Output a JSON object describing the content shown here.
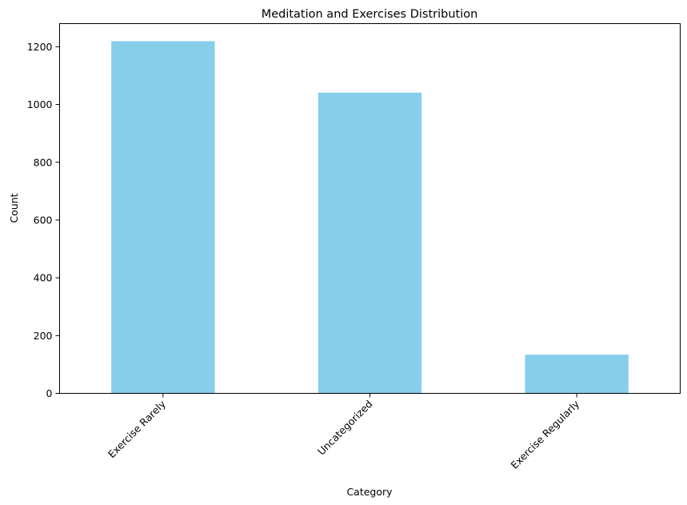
{
  "chart_data": {
    "type": "bar",
    "title": "Meditation and Exercises Distribution",
    "xlabel": "Category",
    "ylabel": "Count",
    "categories": [
      "Exercise Rarely",
      "Uncategorized",
      "Exercise Regularly"
    ],
    "values": [
      1219,
      1041,
      134
    ],
    "ylim": [
      0,
      1280
    ],
    "yticks": [
      0,
      200,
      400,
      600,
      800,
      1000,
      1200
    ],
    "grid": false,
    "bar_color": "#87CEEB"
  }
}
